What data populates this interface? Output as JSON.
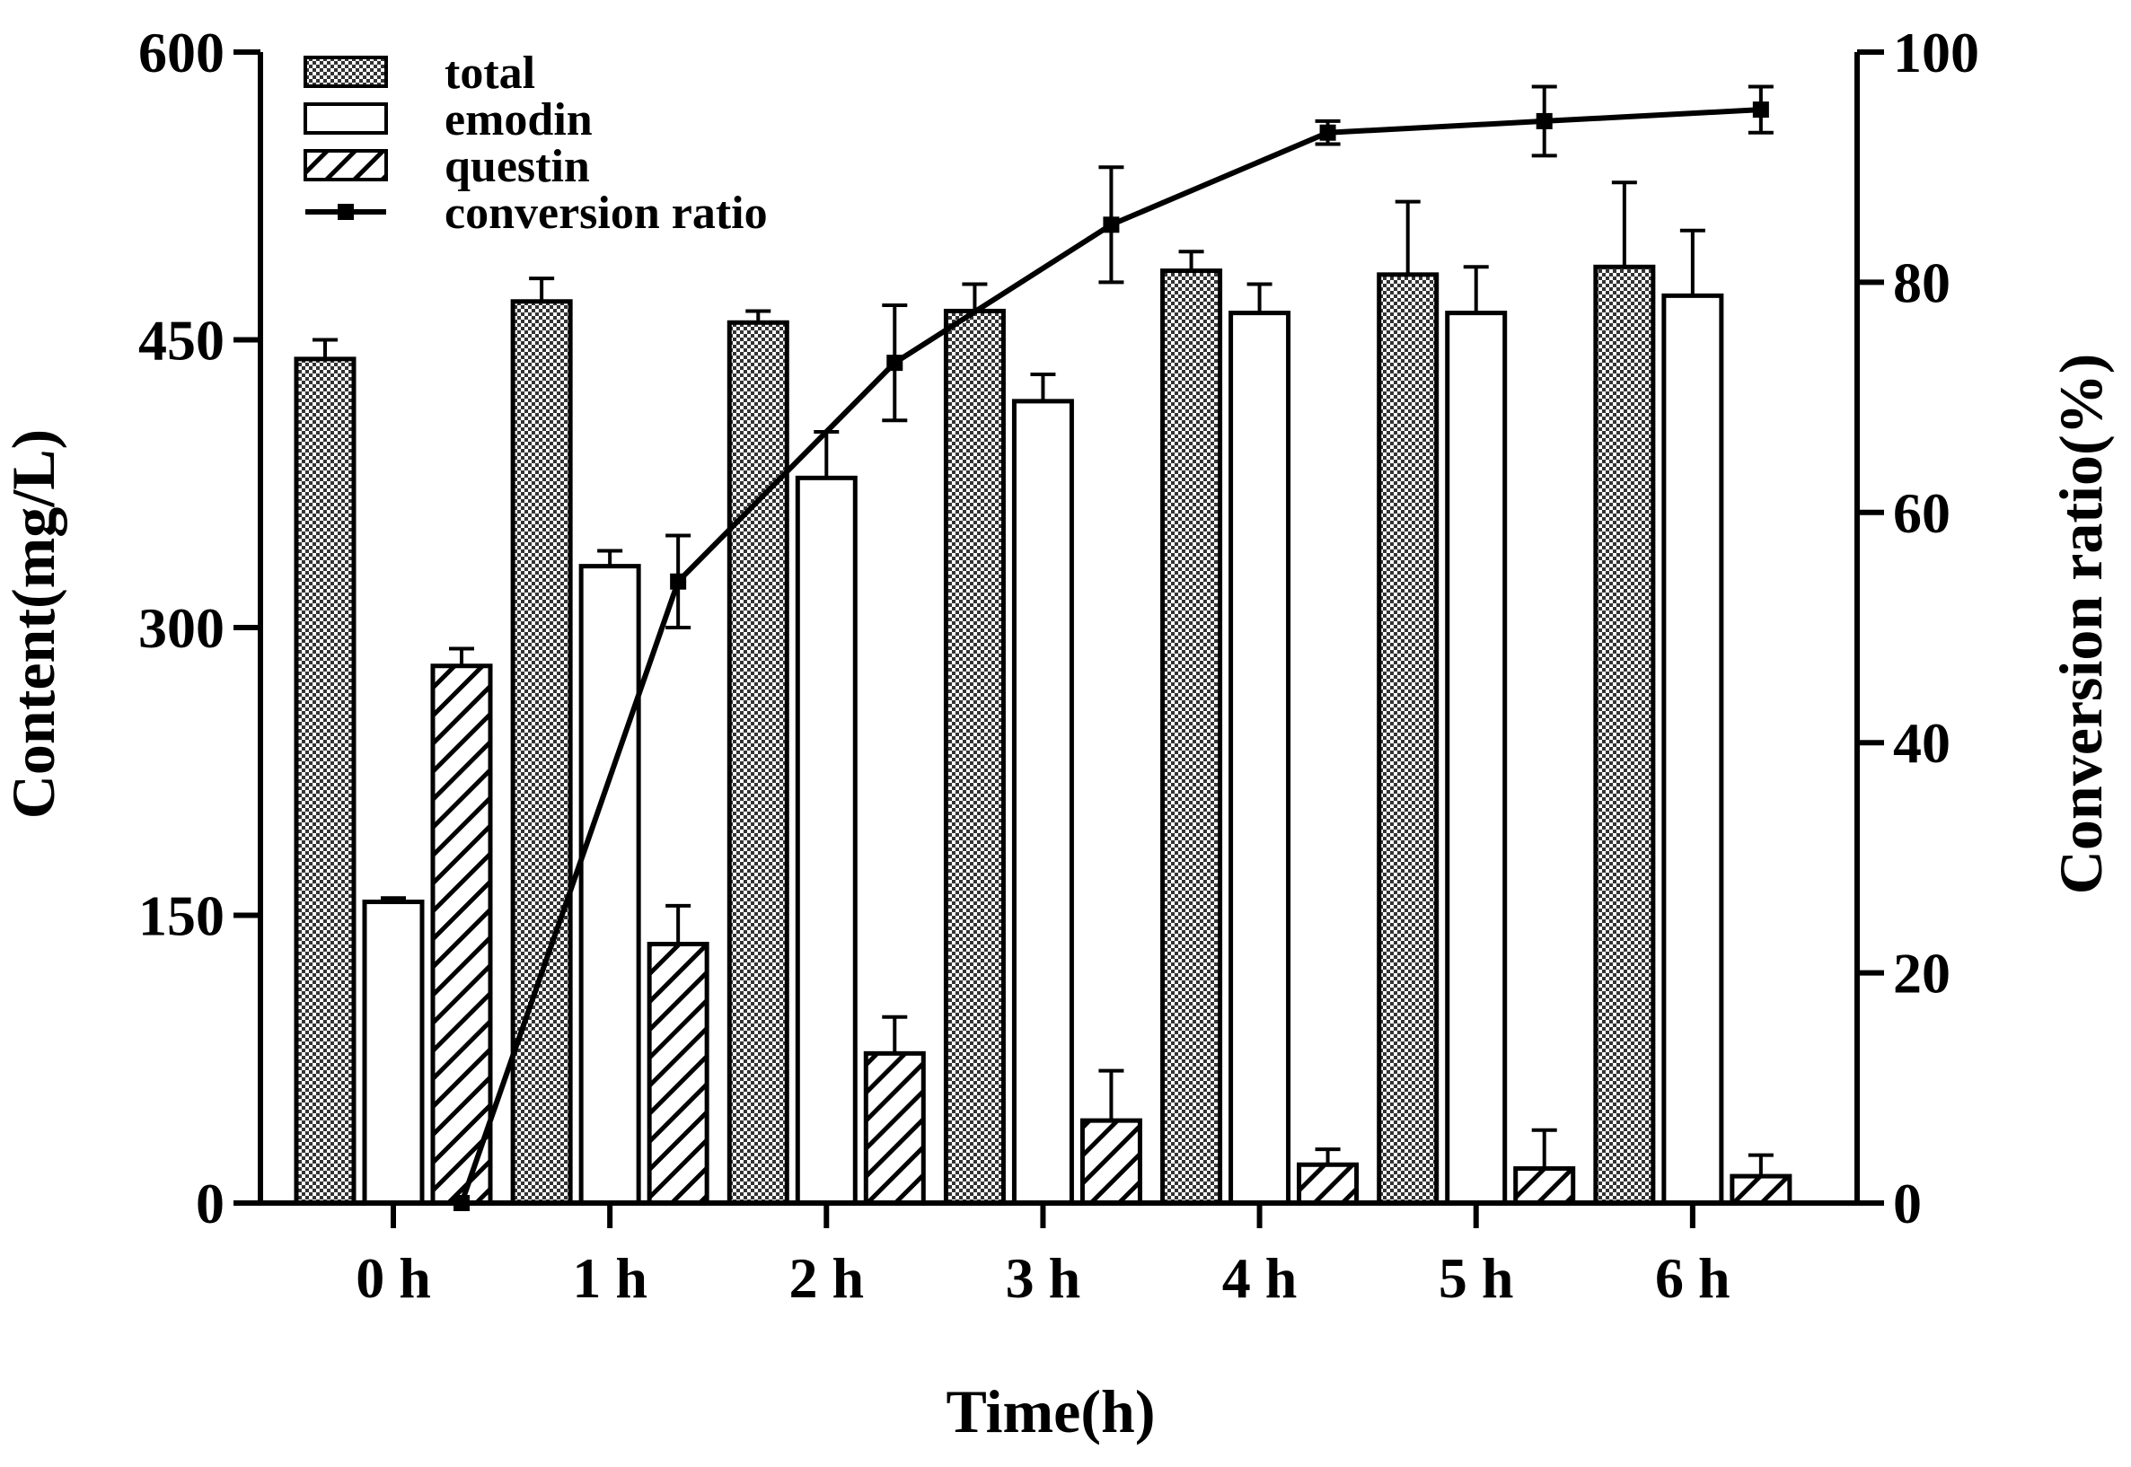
{
  "chart_data": {
    "type": "bar",
    "title": "",
    "categories": [
      "0 h",
      "1 h",
      "2 h",
      "3 h",
      "4 h",
      "5 h",
      "6 h"
    ],
    "xlabel": "Time(h)",
    "ylabel": "Content(mg/L)",
    "y2label": "Conversion ratio(%)",
    "ylim": [
      0,
      600
    ],
    "y2lim": [
      0,
      100
    ],
    "yticks": [
      0,
      150,
      300,
      450,
      600
    ],
    "y2ticks": [
      0,
      20,
      40,
      60,
      80,
      100
    ],
    "legend_position": "top-left",
    "grid": false,
    "series": [
      {
        "name": "total",
        "kind": "bar",
        "pattern": "crosshatch",
        "values": [
          440,
          470,
          459,
          465,
          486,
          484,
          488
        ],
        "errors": [
          10,
          12,
          6,
          14,
          10,
          38,
          44
        ]
      },
      {
        "name": "emodin",
        "kind": "bar",
        "pattern": "open",
        "values": [
          157,
          332,
          378,
          418,
          464,
          464,
          473
        ],
        "errors": [
          2,
          8,
          24,
          14,
          15,
          24,
          34
        ]
      },
      {
        "name": "questin",
        "kind": "bar",
        "pattern": "diagonal",
        "values": [
          280,
          135,
          78,
          43,
          20,
          18,
          14
        ],
        "errors": [
          9,
          20,
          19,
          26,
          8,
          20,
          11
        ]
      },
      {
        "name": "conversion ratio",
        "kind": "line",
        "axis": "right",
        "values": [
          0,
          54,
          73,
          85,
          93,
          94,
          95
        ],
        "errors": [
          0,
          4,
          5,
          5,
          1,
          3,
          2
        ]
      }
    ]
  }
}
